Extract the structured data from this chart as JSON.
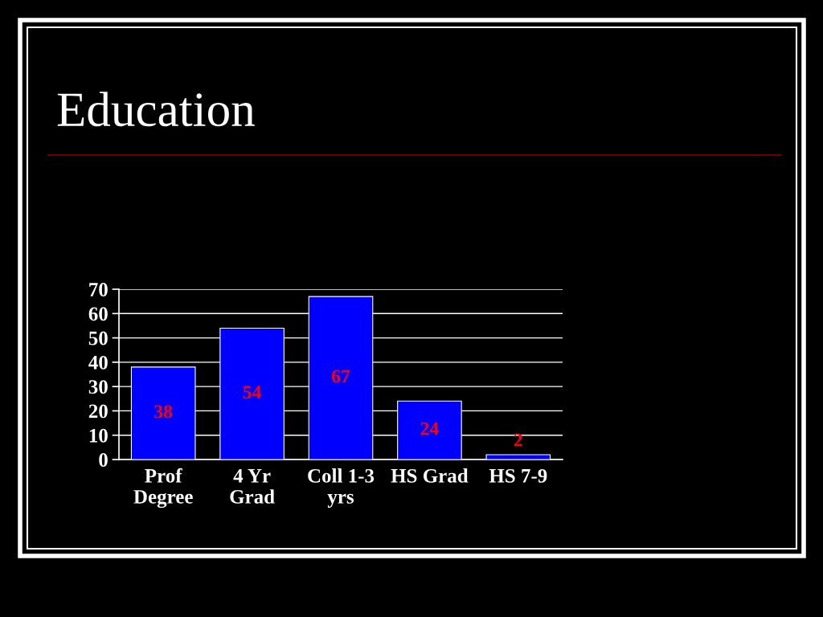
{
  "chart_data": {
    "type": "bar",
    "title": "Education",
    "categories": [
      "Prof\nDegree",
      "4 Yr\nGrad",
      "Coll 1-3\nyrs",
      "HS Grad",
      "HS 7-9"
    ],
    "values": [
      38,
      54,
      67,
      24,
      2
    ],
    "color": "#0000ff",
    "ylim": [
      0,
      70
    ],
    "yticks": [
      0,
      10,
      20,
      30,
      40,
      50,
      60,
      70
    ],
    "grid": "y",
    "data_labels": true
  }
}
